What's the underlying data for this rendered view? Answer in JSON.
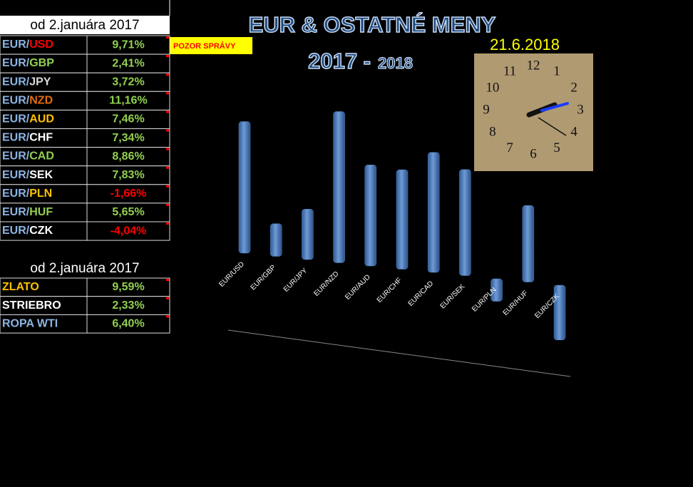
{
  "header": {
    "title": "EUR & OSTATNÉ MENY",
    "years_left": "2017 -",
    "years_right": "2018",
    "date": "21.6.2018"
  },
  "note": "POZOR SPRÁVY",
  "currency_table": {
    "header": "od 2.januára  2017",
    "rows": [
      {
        "base": "EUR/",
        "quote": "USD",
        "quote_color": "#ff0000",
        "change": "9,71%",
        "change_color": "#92d050"
      },
      {
        "base": "EUR/",
        "quote": "GBP",
        "quote_color": "#92d050",
        "change": "2,41%",
        "change_color": "#92d050"
      },
      {
        "base": "EUR/",
        "quote": "JPY",
        "quote_color": "#d9d9d9",
        "change": "3,72%",
        "change_color": "#92d050"
      },
      {
        "base": "EUR/",
        "quote": "NZD",
        "quote_color": "#e26b0a",
        "change": "11,16%",
        "change_color": "#92d050"
      },
      {
        "base": "EUR/",
        "quote": "AUD",
        "quote_color": "#ffc000",
        "change": "7,46%",
        "change_color": "#92d050"
      },
      {
        "base": "EUR/",
        "quote": "CHF",
        "quote_color": "#ffffff",
        "change": "7,34%",
        "change_color": "#92d050"
      },
      {
        "base": "EUR/",
        "quote": "CAD",
        "quote_color": "#92d050",
        "change": "8,86%",
        "change_color": "#92d050"
      },
      {
        "base": "EUR/",
        "quote": "SEK",
        "quote_color": "#ffffff",
        "change": "7,83%",
        "change_color": "#92d050"
      },
      {
        "base": "EUR/",
        "quote": "PLN",
        "quote_color": "#ffc000",
        "change": "-1,66%",
        "change_color": "#ff0000"
      },
      {
        "base": "EUR/",
        "quote": "HUF",
        "quote_color": "#92d050",
        "change": "5,65%",
        "change_color": "#92d050"
      },
      {
        "base": "EUR/",
        "quote": "CZK",
        "quote_color": "#ffffff",
        "change": "-4,04%",
        "change_color": "#ff0000"
      }
    ]
  },
  "commodity_table": {
    "header": "od 2.januára 2017",
    "rows": [
      {
        "name": "ZLATO",
        "name_color": "#ffc000",
        "change": "9,59%",
        "change_color": "#92d050"
      },
      {
        "name": "STRIEBRO",
        "name_color": "#ffffff",
        "change": "2,33%",
        "change_color": "#92d050"
      },
      {
        "name": "ROPA WTI",
        "name_color": "#8db4e2",
        "change": "6,40%",
        "change_color": "#92d050"
      }
    ]
  },
  "clock": {
    "numbers": [
      12,
      1,
      2,
      3,
      4,
      5,
      6,
      7,
      8,
      9,
      10,
      11
    ]
  },
  "chart_data": {
    "type": "bar",
    "color": "#4f81bd",
    "categories": [
      "EUR/USD",
      "EUR/GBP",
      "EUR/JPY",
      "EUR/NZD",
      "EUR/AUD",
      "EUR/CHF",
      "EUR/CAD",
      "EUR/SEK",
      "EUR/PLN",
      "EUR/HUF",
      "EUR/CZK"
    ],
    "values": [
      9.71,
      2.41,
      3.72,
      11.16,
      7.46,
      7.34,
      8.86,
      7.83,
      -1.66,
      5.65,
      -4.04
    ]
  }
}
